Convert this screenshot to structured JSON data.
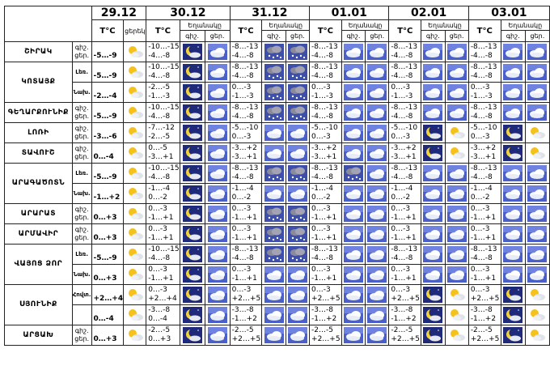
{
  "header": {
    "dates": [
      "29.12",
      "30.12",
      "31.12",
      "01.01",
      "02.01",
      "03.01"
    ],
    "temp_unit": "T°C",
    "first_day_label": "ցերեկ",
    "precip_label": "Եղանակը",
    "night_label": "գիշ.",
    "day_label": "ցեր."
  },
  "rows": [
    {
      "region": "ՇԻՐԱԿ",
      "sub": "",
      "d0": {
        "labels": "գիշ.\nցեր.",
        "temp": "-5…-9",
        "icon": "sun-cloud-icon"
      },
      "days": [
        {
          "t1": "-10…-15",
          "t2": "-4…-8",
          "n": "night-moon-icon",
          "d": "cloud-icon"
        },
        {
          "t1": "-8…-13",
          "t2": "-4…-8",
          "n": "snow-cloud-icon",
          "d": "snow-cloud-icon"
        },
        {
          "t1": "-8…-13",
          "t2": "-4…-8",
          "n": "cloud-icon",
          "d": "cloud-icon"
        },
        {
          "t1": "-8…-13",
          "t2": "-4…-8",
          "n": "cloud-icon",
          "d": "cloud-icon"
        },
        {
          "t1": "-8…-13",
          "t2": "-4…-8",
          "n": "cloud-icon",
          "d": "cloud-icon"
        }
      ]
    },
    {
      "region": "ԿՈՏԱՅՔ",
      "sub": "Լեռ.",
      "d0": {
        "labels": "գիշ.\nցեր.",
        "temp": "-5…-9",
        "icon": "sun-cloud-icon"
      },
      "days": [
        {
          "t1": "-10…-15",
          "t2": "-4…-8",
          "n": "night-moon-icon",
          "d": "cloud-icon"
        },
        {
          "t1": "-8…-13",
          "t2": "-4…-8",
          "n": "snow-cloud-icon",
          "d": "snow-cloud-icon"
        },
        {
          "t1": "-8…-13",
          "t2": "-4…-8",
          "n": "cloud-icon",
          "d": "cloud-icon"
        },
        {
          "t1": "-8…-13",
          "t2": "-4…-8",
          "n": "cloud-icon",
          "d": "cloud-icon"
        },
        {
          "t1": "-8…-13",
          "t2": "-4…-8",
          "n": "cloud-icon",
          "d": "cloud-icon"
        }
      ]
    },
    {
      "region": "",
      "sub": "Նախ.",
      "d0": {
        "labels": "գիշ.\nցեր.",
        "temp": "-2…-4",
        "icon": "sun-cloud-icon"
      },
      "days": [
        {
          "t1": "-2…-5",
          "t2": "-1…-3",
          "n": "night-moon-icon",
          "d": "cloud-icon"
        },
        {
          "t1": "0…-3",
          "t2": "-1…-3",
          "n": "snow-cloud-icon",
          "d": "snow-cloud-icon"
        },
        {
          "t1": "0…-3",
          "t2": "-1…-3",
          "n": "cloud-icon",
          "d": "cloud-icon"
        },
        {
          "t1": "0…-3",
          "t2": "-1…-3",
          "n": "cloud-icon",
          "d": "cloud-icon"
        },
        {
          "t1": "0…-3",
          "t2": "-1…-3",
          "n": "cloud-icon",
          "d": "cloud-icon"
        }
      ]
    },
    {
      "region": "ԳԵՂԱՐՔՈՒՆԻՔ",
      "sub": "",
      "d0": {
        "labels": "գիշ.\nցեր.",
        "temp": "-5…-9",
        "icon": "sun-cloud-icon"
      },
      "days": [
        {
          "t1": "-10…-15",
          "t2": "-4…-8",
          "n": "night-moon-icon",
          "d": "cloud-icon"
        },
        {
          "t1": "-8…-13",
          "t2": "-4…-8",
          "n": "snow-cloud-icon",
          "d": "snow-cloud-icon"
        },
        {
          "t1": "-8…-13",
          "t2": "-4…-8",
          "n": "cloud-icon",
          "d": "cloud-icon"
        },
        {
          "t1": "-8…-13",
          "t2": "-4…-8",
          "n": "cloud-icon",
          "d": "cloud-icon"
        },
        {
          "t1": "-8…-13",
          "t2": "-4…-8",
          "n": "cloud-icon",
          "d": "cloud-icon"
        }
      ]
    },
    {
      "region": "ԼՈՌԻ",
      "sub": "",
      "d0": {
        "labels": "գիշ.\nցեր.",
        "temp": "-3…-6",
        "icon": "sun-cloud-icon"
      },
      "days": [
        {
          "t1": "-7…-12",
          "t2": "-2…-5",
          "n": "night-moon-icon",
          "d": "cloud-icon"
        },
        {
          "t1": "-5…-10",
          "t2": "0…-3",
          "n": "cloud-icon",
          "d": "cloud-icon"
        },
        {
          "t1": "-5…-10",
          "t2": "0…-3",
          "n": "cloud-icon",
          "d": "cloud-icon"
        },
        {
          "t1": "-5…-10",
          "t2": "0…-3",
          "n": "night-moon-icon",
          "d": "sun-cloud-icon"
        },
        {
          "t1": "-5…-10",
          "t2": "0…-3",
          "n": "night-moon-icon",
          "d": "sun-cloud-icon"
        }
      ]
    },
    {
      "region": "ՏԱՎՈՒՇ",
      "sub": "",
      "d0": {
        "labels": "գիշ.\nցեր.",
        "temp": "0…-4",
        "icon": "sun-cloud-icon"
      },
      "days": [
        {
          "t1": "0…-5",
          "t2": "-3…+1",
          "n": "night-moon-icon",
          "d": "cloud-icon"
        },
        {
          "t1": "-3…+2",
          "t2": "-3…+1",
          "n": "cloud-icon",
          "d": "cloud-icon"
        },
        {
          "t1": "-3…+2",
          "t2": "-3…+1",
          "n": "cloud-icon",
          "d": "cloud-icon"
        },
        {
          "t1": "-3…+2",
          "t2": "-3…+1",
          "n": "night-moon-icon",
          "d": "sun-cloud-icon"
        },
        {
          "t1": "-3…+2",
          "t2": "-3…+1",
          "n": "night-moon-icon",
          "d": "sun-cloud-icon"
        }
      ]
    },
    {
      "region": "ԱՐԱԳԱԾՈՏՆ",
      "sub": "Լեռ.",
      "d0": {
        "labels": "գիշ.\nցեր.",
        "temp": "-5…-9",
        "icon": "sun-cloud-icon"
      },
      "days": [
        {
          "t1": "-10…-15",
          "t2": "-4…-8",
          "n": "night-moon-icon",
          "d": "cloud-icon"
        },
        {
          "t1": "-8…-13",
          "t2": "-4…-8",
          "n": "snow-cloud-icon",
          "d": "snow-cloud-icon"
        },
        {
          "t1": "-8…-13",
          "t2": "-4…-8",
          "n": "snow-cloud-icon",
          "d": "cloud-icon"
        },
        {
          "t1": "-8…-13",
          "t2": "-4…-8",
          "n": "cloud-icon",
          "d": "cloud-icon"
        },
        {
          "t1": "-8…-13",
          "t2": "-4…-8",
          "n": "cloud-icon",
          "d": "cloud-icon"
        }
      ]
    },
    {
      "region": "",
      "sub": "Նախ.",
      "d0": {
        "labels": "գիշ.\nցեր.",
        "temp": "-1…+2",
        "icon": "sun-cloud-icon"
      },
      "days": [
        {
          "t1": "-1…-4",
          "t2": "0…-2",
          "n": "night-moon-icon",
          "d": "cloud-icon"
        },
        {
          "t1": "-1…-4",
          "t2": "0…-2",
          "n": "cloud-icon",
          "d": "cloud-icon"
        },
        {
          "t1": "-1…-4",
          "t2": "0…-2",
          "n": "cloud-icon",
          "d": "cloud-icon"
        },
        {
          "t1": "-1…-4",
          "t2": "0…-2",
          "n": "cloud-icon",
          "d": "cloud-icon"
        },
        {
          "t1": "-1…-4",
          "t2": "0…-2",
          "n": "cloud-icon",
          "d": "cloud-icon"
        }
      ]
    },
    {
      "region": "ԱՐԱՐԱՏ",
      "sub": "",
      "d0": {
        "labels": "գիշ.\nցեր.",
        "temp": "0…+3",
        "icon": "sun-cloud-icon"
      },
      "days": [
        {
          "t1": "0…-3",
          "t2": "-1…+1",
          "n": "night-moon-icon",
          "d": "cloud-icon"
        },
        {
          "t1": "0…-3",
          "t2": "-1…+1",
          "n": "snow-cloud-icon",
          "d": "snow-cloud-icon"
        },
        {
          "t1": "0…-3",
          "t2": "-1…+1",
          "n": "cloud-icon",
          "d": "cloud-icon"
        },
        {
          "t1": "0…-3",
          "t2": "-1…+1",
          "n": "cloud-icon",
          "d": "cloud-icon"
        },
        {
          "t1": "0…-3",
          "t2": "-1…+1",
          "n": "cloud-icon",
          "d": "cloud-icon"
        }
      ]
    },
    {
      "region": "ԱՐՄԱՎԻՐ",
      "sub": "",
      "d0": {
        "labels": "գիշ.\nցեր.",
        "temp": "0…+3",
        "icon": "sun-cloud-icon"
      },
      "days": [
        {
          "t1": "0…-3",
          "t2": "-1…+1",
          "n": "night-moon-icon",
          "d": "cloud-icon"
        },
        {
          "t1": "0…-3",
          "t2": "-1…+1",
          "n": "snow-cloud-icon",
          "d": "snow-cloud-icon"
        },
        {
          "t1": "0…-3",
          "t2": "-1…+1",
          "n": "cloud-icon",
          "d": "cloud-icon"
        },
        {
          "t1": "0…-3",
          "t2": "-1…+1",
          "n": "cloud-icon",
          "d": "cloud-icon"
        },
        {
          "t1": "0…-3",
          "t2": "-1…+1",
          "n": "cloud-icon",
          "d": "cloud-icon"
        }
      ]
    },
    {
      "region": "ՎԱՅՈՑ ՁՈՐ",
      "sub": "Լեռ.",
      "d0": {
        "labels": "գիշ.\nցեր.",
        "temp": "-5…-9",
        "icon": "sun-cloud-icon"
      },
      "days": [
        {
          "t1": "-10…-15",
          "t2": "-4…-8",
          "n": "night-moon-icon",
          "d": "cloud-icon"
        },
        {
          "t1": "-8…-13",
          "t2": "-4…-8",
          "n": "snow-cloud-icon",
          "d": "snow-cloud-icon"
        },
        {
          "t1": "-8…-13",
          "t2": "-4…-8",
          "n": "cloud-icon",
          "d": "cloud-icon"
        },
        {
          "t1": "-8…-13",
          "t2": "-4…-8",
          "n": "cloud-icon",
          "d": "cloud-icon"
        },
        {
          "t1": "-8…-13",
          "t2": "-4…-8",
          "n": "cloud-icon",
          "d": "cloud-icon"
        }
      ]
    },
    {
      "region": "",
      "sub": "Նախ.",
      "d0": {
        "labels": "գիշ.\nցեր.",
        "temp": "0…+3",
        "icon": "sun-cloud-icon"
      },
      "days": [
        {
          "t1": "0…-3",
          "t2": "-1…+1",
          "n": "night-moon-icon",
          "d": "cloud-icon"
        },
        {
          "t1": "0…-3",
          "t2": "-1…+1",
          "n": "cloud-icon",
          "d": "cloud-icon"
        },
        {
          "t1": "0…-3",
          "t2": "-1…+1",
          "n": "cloud-icon",
          "d": "cloud-icon"
        },
        {
          "t1": "0…-3",
          "t2": "-1…+1",
          "n": "cloud-icon",
          "d": "cloud-icon"
        },
        {
          "t1": "0…-3",
          "t2": "-1…+1",
          "n": "cloud-icon",
          "d": "cloud-icon"
        }
      ]
    },
    {
      "region": "ՍՅՈՒՆԻՔ",
      "sub": "Հովտ.",
      "d0": {
        "labels": "գիշ.\nցեր.",
        "temp": "+2…+4",
        "icon": "sun-cloud-icon"
      },
      "days": [
        {
          "t1": "0…-3",
          "t2": "+2…+4",
          "n": "night-moon-icon",
          "d": "cloud-icon"
        },
        {
          "t1": "0…-3",
          "t2": "+2…+5",
          "n": "cloud-icon",
          "d": "cloud-icon"
        },
        {
          "t1": "0…-3",
          "t2": "+2…+5",
          "n": "cloud-icon",
          "d": "cloud-icon"
        },
        {
          "t1": "0…-3",
          "t2": "+2…+5",
          "n": "night-moon-icon",
          "d": "sun-cloud-icon"
        },
        {
          "t1": "0…-3",
          "t2": "+2…+5",
          "n": "night-moon-icon",
          "d": "sun-cloud-icon"
        }
      ]
    },
    {
      "region": "",
      "sub": "",
      "d0": {
        "labels": "գիշ.\nցեր.",
        "temp": "0…-4",
        "icon": "sun-cloud-icon"
      },
      "days": [
        {
          "t1": "-3…-8",
          "t2": "0…-4",
          "n": "night-moon-icon",
          "d": "cloud-icon"
        },
        {
          "t1": "-3…-8",
          "t2": "-1…+2",
          "n": "cloud-icon",
          "d": "cloud-icon"
        },
        {
          "t1": "-3…-8",
          "t2": "-1…+2",
          "n": "cloud-icon",
          "d": "cloud-icon"
        },
        {
          "t1": "-3…-8",
          "t2": "-1…+2",
          "n": "night-moon-icon",
          "d": "sun-cloud-icon"
        },
        {
          "t1": "-3…-8",
          "t2": "-1…+2",
          "n": "night-moon-icon",
          "d": "sun-cloud-icon"
        }
      ]
    },
    {
      "region": "ԱՐՑԱԽ",
      "sub": "",
      "d0": {
        "labels": "գիշ.\nցեր.",
        "temp": "0…+3",
        "icon": "sun-cloud-icon"
      },
      "days": [
        {
          "t1": "-2…-5",
          "t2": "0…+3",
          "n": "night-moon-icon",
          "d": "cloud-icon"
        },
        {
          "t1": "-2…-5",
          "t2": "+2…+5",
          "n": "cloud-icon",
          "d": "cloud-icon"
        },
        {
          "t1": "-2…-5",
          "t2": "+2…+5",
          "n": "cloud-icon",
          "d": "cloud-icon"
        },
        {
          "t1": "-2…-5",
          "t2": "+2…+5",
          "n": "night-moon-icon",
          "d": "sun-cloud-icon"
        },
        {
          "t1": "-2…-5",
          "t2": "+2…+5",
          "n": "night-moon-icon",
          "d": "sun-cloud-icon"
        }
      ]
    }
  ]
}
